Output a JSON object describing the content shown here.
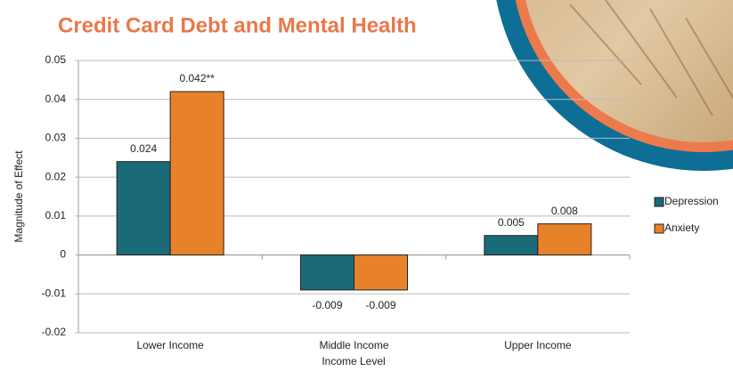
{
  "chart_data": {
    "type": "bar",
    "title": "Credit Card Debt and Mental Health",
    "x_label": "Income Level",
    "y_label": "Magnitude of Effect",
    "categories": [
      "Lower Income",
      "Middle Income",
      "Upper Income"
    ],
    "series": [
      {
        "name": "Depression",
        "color": "#1b6a78",
        "values": [
          0.024,
          -0.009,
          0.005
        ],
        "value_labels": [
          "0.024",
          "-0.009",
          "0.005"
        ]
      },
      {
        "name": "Anxiety",
        "color": "#e8822a",
        "values": [
          0.042,
          -0.009,
          0.008
        ],
        "value_labels": [
          "0.042**",
          "-0.009",
          "0.008"
        ]
      }
    ],
    "ylim": [
      -0.02,
      0.05
    ],
    "yticks": [
      -0.02,
      -0.01,
      0,
      0.01,
      0.02,
      0.03,
      0.04,
      0.05
    ],
    "grid": true,
    "legend": "right"
  }
}
